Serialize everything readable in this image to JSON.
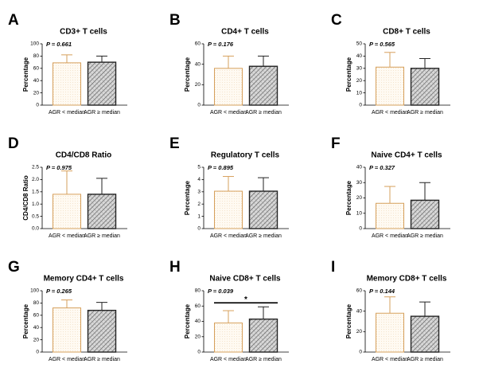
{
  "chart_data": [
    {
      "type": "bar",
      "panel": "A",
      "title": "CD3+ T cells",
      "ylabel": "Percentage",
      "annotation": "P = 0.661",
      "categories": [
        "AGR < median",
        "AGR ≥ median"
      ],
      "values": [
        69,
        70
      ],
      "errors": [
        13,
        10
      ],
      "colors": [
        "#d6a05c",
        "#222222"
      ],
      "ylim": [
        0,
        100
      ],
      "yticks": [
        0,
        20,
        40,
        60,
        80,
        100
      ]
    },
    {
      "type": "bar",
      "panel": "B",
      "title": "CD4+ T cells",
      "ylabel": "Percentage",
      "annotation": "P = 0.176",
      "categories": [
        "AGR < median",
        "AGR ≥ median"
      ],
      "values": [
        36,
        38
      ],
      "errors": [
        12,
        10
      ],
      "colors": [
        "#d6a05c",
        "#222222"
      ],
      "ylim": [
        0,
        60
      ],
      "yticks": [
        0,
        20,
        40,
        60
      ]
    },
    {
      "type": "bar",
      "panel": "C",
      "title": "CD8+ T cells",
      "ylabel": "Percentage",
      "annotation": "P = 0.565",
      "categories": [
        "AGR < median",
        "AGR ≥ median"
      ],
      "values": [
        31,
        30
      ],
      "errors": [
        12,
        8
      ],
      "colors": [
        "#d6a05c",
        "#222222"
      ],
      "ylim": [
        0,
        50
      ],
      "yticks": [
        0,
        10,
        20,
        30,
        40,
        50
      ]
    },
    {
      "type": "bar",
      "panel": "D",
      "title": "CD4/CD8 Ratio",
      "ylabel": "CD4/CD8 Ratio",
      "annotation": "P = 0.975",
      "categories": [
        "AGR < median",
        "AGR ≥ median"
      ],
      "values": [
        1.4,
        1.4
      ],
      "errors": [
        0.95,
        0.65
      ],
      "colors": [
        "#d6a05c",
        "#222222"
      ],
      "ylim": [
        0,
        2.5
      ],
      "yticks": [
        {
          "value": 0,
          "label": "0.0"
        },
        0.5,
        {
          "value": 1,
          "label": "1.0"
        },
        1.5,
        {
          "value": 2,
          "label": "2.0"
        },
        2.5
      ]
    },
    {
      "type": "bar",
      "panel": "E",
      "title": "Regulatory T cells",
      "ylabel": "Percentage",
      "annotation": "P = 0.895",
      "categories": [
        "AGR < median",
        "AGR ≥ median"
      ],
      "values": [
        3.05,
        3.05
      ],
      "errors": [
        1.2,
        1.1
      ],
      "colors": [
        "#d6a05c",
        "#222222"
      ],
      "ylim": [
        0,
        5
      ],
      "yticks": [
        0,
        1,
        2,
        3,
        4,
        5
      ]
    },
    {
      "type": "bar",
      "panel": "F",
      "title": "Naive CD4+ T cells",
      "ylabel": "Percentage",
      "annotation": "P = 0.327",
      "categories": [
        "AGR < median",
        "AGR ≥ median"
      ],
      "values": [
        16.5,
        18.5
      ],
      "errors": [
        11,
        11.5
      ],
      "colors": [
        "#d6a05c",
        "#222222"
      ],
      "ylim": [
        0,
        40
      ],
      "yticks": [
        0,
        10,
        20,
        30,
        40
      ]
    },
    {
      "type": "bar",
      "panel": "G",
      "title": "Memory CD4+ T cells",
      "ylabel": "Percentage",
      "annotation": "P = 0.265",
      "categories": [
        "AGR < median",
        "AGR ≥ median"
      ],
      "values": [
        72,
        68
      ],
      "errors": [
        13,
        13
      ],
      "colors": [
        "#d6a05c",
        "#222222"
      ],
      "ylim": [
        0,
        100
      ],
      "yticks": [
        0,
        20,
        40,
        60,
        80,
        100
      ]
    },
    {
      "type": "bar",
      "panel": "H",
      "title": "Naive CD8+ T cells",
      "ylabel": "Percentage",
      "annotation": "P = 0.039",
      "significance": "*",
      "categories": [
        "AGR < median",
        "AGR ≥ median"
      ],
      "values": [
        38,
        43
      ],
      "errors": [
        16,
        16
      ],
      "colors": [
        "#d6a05c",
        "#222222"
      ],
      "ylim": [
        0,
        80
      ],
      "yticks": [
        0,
        20,
        40,
        60,
        80
      ]
    },
    {
      "type": "bar",
      "panel": "I",
      "title": "Memory CD8+ T cells",
      "ylabel": "Percentage",
      "annotation": "P = 0.144",
      "categories": [
        "AGR < median",
        "AGR ≥ median"
      ],
      "values": [
        38,
        35
      ],
      "errors": [
        16,
        14
      ],
      "colors": [
        "#d6a05c",
        "#222222"
      ],
      "ylim": [
        0,
        60
      ],
      "yticks": [
        0,
        20,
        40,
        60
      ]
    }
  ]
}
